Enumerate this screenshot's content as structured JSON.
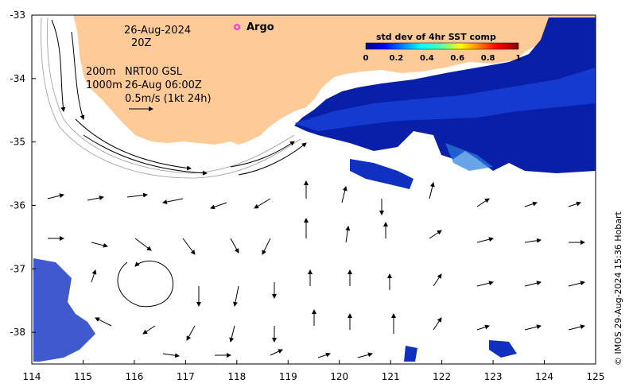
{
  "map": {
    "date_line1": "26-Aug-2024",
    "date_line2": "20Z",
    "contour_line1": "200m",
    "contour_line2": "1000m",
    "product_line1": "NRT00 GSL",
    "product_line2": "26-Aug 06:00Z",
    "scale_label": "0.5m/s (1kt 24h)",
    "legend_label": "Argo",
    "legend_color": "#ff00ff",
    "credit": "© IMOS 29-Aug-2024 15:36 Hobart",
    "land_color": "#fecb98"
  },
  "colorbar": {
    "title": "std dev of 4hr SST comp",
    "ticks": [
      "0",
      "0.2",
      "0.4",
      "0.6",
      "0.8",
      "1"
    ]
  },
  "axes": {
    "x_ticks": [
      "114",
      "115",
      "116",
      "117",
      "118",
      "119",
      "120",
      "121",
      "122",
      "123",
      "124",
      "125"
    ],
    "y_ticks": [
      "-33",
      "-34",
      "-35",
      "-36",
      "-37",
      "-38"
    ]
  }
}
